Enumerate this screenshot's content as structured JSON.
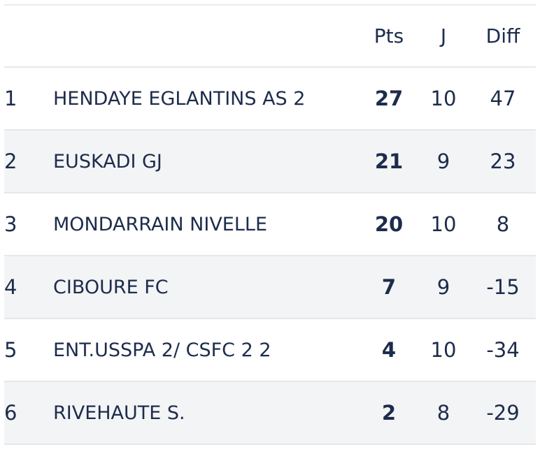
{
  "table": {
    "headers": {
      "rank": "",
      "team": "",
      "pts": "Pts",
      "j": "J",
      "diff": "Diff"
    },
    "rows": [
      {
        "rank": "1",
        "team": "HENDAYE EGLANTINS AS 2",
        "pts": "27",
        "j": "10",
        "diff": "47"
      },
      {
        "rank": "2",
        "team": "EUSKADI GJ",
        "pts": "21",
        "j": "9",
        "diff": "23"
      },
      {
        "rank": "3",
        "team": "MONDARRAIN NIVELLE",
        "pts": "20",
        "j": "10",
        "diff": "8"
      },
      {
        "rank": "4",
        "team": "CIBOURE FC",
        "pts": "7",
        "j": "9",
        "diff": "-15"
      },
      {
        "rank": "5",
        "team": "ENT.USSPA 2/ CSFC 2 2",
        "pts": "4",
        "j": "10",
        "diff": "-34"
      },
      {
        "rank": "6",
        "team": "RIVEHAUTE S.",
        "pts": "2",
        "j": "8",
        "diff": "-29"
      }
    ]
  },
  "colors": {
    "text": "#1d2c4c",
    "row_alt_background": "#f3f4f5",
    "divider": "#e5e7ea"
  }
}
